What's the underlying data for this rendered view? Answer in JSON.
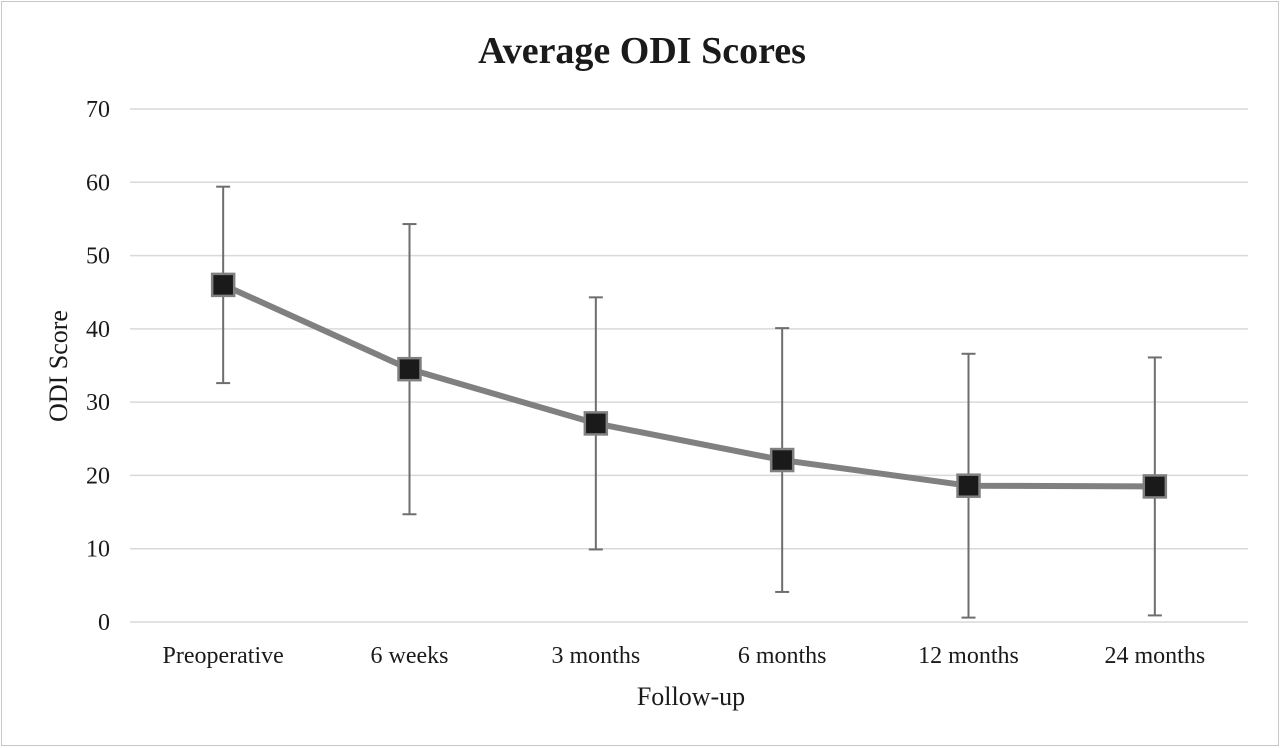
{
  "chart_data": {
    "type": "line",
    "title": "Average ODI Scores",
    "xlabel": "Follow-up",
    "ylabel": "ODI Score",
    "categories": [
      "Preoperative",
      "6 weeks",
      "3 months",
      "6 months",
      "12 months",
      "24 months"
    ],
    "series": [
      {
        "values": [
          46.0,
          34.5,
          27.1,
          22.1,
          18.6,
          18.5
        ],
        "error_upper": [
          59.4,
          54.3,
          44.3,
          40.1,
          36.6,
          36.1
        ],
        "error_lower": [
          32.6,
          14.7,
          9.9,
          4.1,
          0.6,
          0.9
        ]
      }
    ],
    "ylim": [
      0,
      70
    ],
    "yticks": [
      "0",
      "10",
      "20",
      "30",
      "40",
      "50",
      "60",
      "70"
    ],
    "grid": true,
    "legend": "none",
    "colors": {
      "line": "#808080",
      "marker_fill": "#1a1a1a",
      "marker_border": "#808080",
      "error_bar": "#6e6e6e",
      "grid": "#d9d9d9"
    }
  }
}
